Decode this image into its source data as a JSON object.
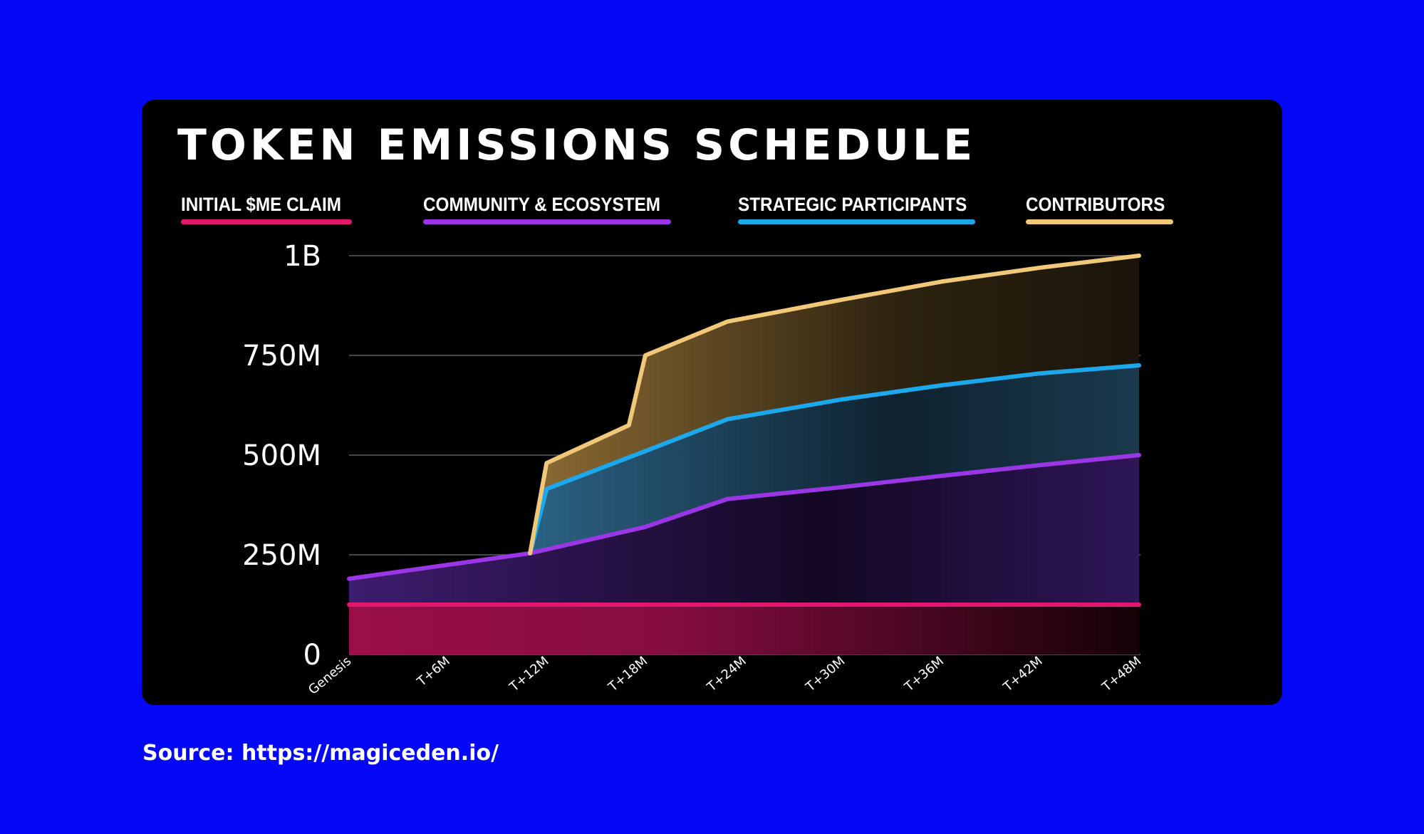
{
  "source": "Source: https://magiceden.io/",
  "chart_data": {
    "type": "area",
    "title": "TOKEN EMISSIONS SCHEDULE",
    "xlabel": "",
    "ylabel": "",
    "x": [
      "Genesis",
      "T+6M",
      "T+12M",
      "T+18M",
      "T+24M",
      "T+30M",
      "T+36M",
      "T+42M",
      "T+48M"
    ],
    "ylim": [
      0,
      1000000000
    ],
    "yticks": [
      {
        "value": 0,
        "label": "0"
      },
      {
        "value": 250000000,
        "label": "250M"
      },
      {
        "value": 500000000,
        "label": "500M"
      },
      {
        "value": 750000000,
        "label": "750M"
      },
      {
        "value": 1000000000,
        "label": "1B"
      }
    ],
    "grid": true,
    "legend_position": "top",
    "series": [
      {
        "name": "INITIAL $ME CLAIM",
        "color": "#e3176b",
        "points": [
          [
            0,
            125000000
          ],
          [
            48,
            125000000
          ]
        ]
      },
      {
        "name": "COMMUNITY & ECOSYSTEM",
        "color": "#9a36e6",
        "points": [
          [
            0,
            190000000
          ],
          [
            11,
            254000000
          ],
          [
            18,
            320000000
          ],
          [
            23,
            390000000
          ],
          [
            30,
            420000000
          ],
          [
            36,
            448000000
          ],
          [
            42,
            475000000
          ],
          [
            48,
            500000000
          ]
        ]
      },
      {
        "name": "STRATEGIC PARTICIPANTS",
        "color": "#1ba8ec",
        "points": [
          [
            11,
            254000000
          ],
          [
            12,
            415000000
          ],
          [
            18,
            510000000
          ],
          [
            23,
            590000000
          ],
          [
            30,
            640000000
          ],
          [
            36,
            675000000
          ],
          [
            42,
            705000000
          ],
          [
            48,
            725000000
          ]
        ]
      },
      {
        "name": "CONTRIBUTORS",
        "color": "#f1c87a",
        "points": [
          [
            11,
            254000000
          ],
          [
            12,
            480000000
          ],
          [
            17,
            575000000
          ],
          [
            18,
            750000000
          ],
          [
            23,
            835000000
          ],
          [
            30,
            890000000
          ],
          [
            36,
            935000000
          ],
          [
            42,
            970000000
          ],
          [
            48,
            1000000000
          ]
        ]
      }
    ]
  }
}
